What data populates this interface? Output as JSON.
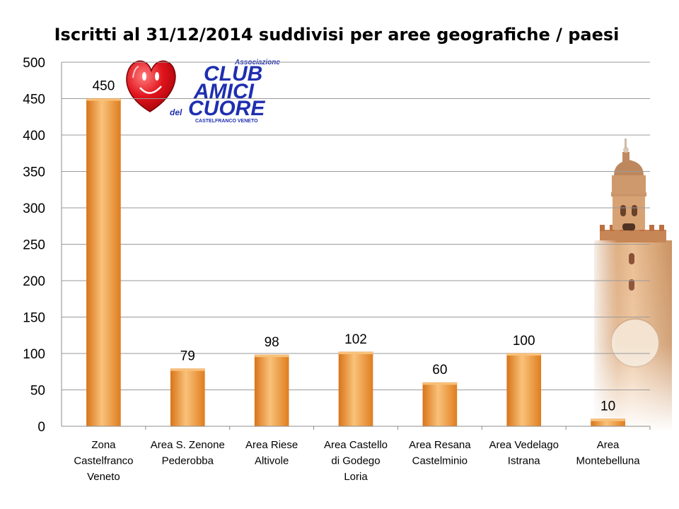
{
  "chart_data": {
    "type": "bar",
    "title": "Iscritti al 31/12/2014 suddivisi per aree geografiche / paesi",
    "categories": [
      [
        "Zona",
        "Castelfranco",
        "Veneto"
      ],
      [
        "Area S. Zenone",
        "Pederobba"
      ],
      [
        "Area Riese",
        "Altivole"
      ],
      [
        "Area  Castello",
        "di Godego",
        "Loria"
      ],
      [
        "Area  Resana",
        "Castelminio"
      ],
      [
        "Area  Vedelago",
        "Istrana"
      ],
      [
        "Area",
        "Montebelluna"
      ]
    ],
    "values": [
      450,
      79,
      98,
      102,
      60,
      100,
      10
    ],
    "data_labels": [
      "450",
      "79",
      "98",
      "102",
      "60",
      "100",
      "10"
    ],
    "yticks": [
      "0",
      "50",
      "100",
      "150",
      "200",
      "250",
      "300",
      "350",
      "400",
      "450",
      "500"
    ],
    "ylim": [
      0,
      500
    ],
    "grid": true,
    "legend": "none",
    "bar_color": "#f29a2e",
    "bar_color_light": "#f9c27a",
    "bar_color_dark": "#d9751a",
    "grid_color": "#9a9a9a"
  },
  "logo": {
    "small": "Associazione",
    "line1": "CLUB",
    "line2": "AMICI",
    "del": "del",
    "line3": "CUORE",
    "city": "CASTELFRANCO VENETO",
    "heart_color": "#e0141c",
    "text_color": "#1f2fb0"
  }
}
